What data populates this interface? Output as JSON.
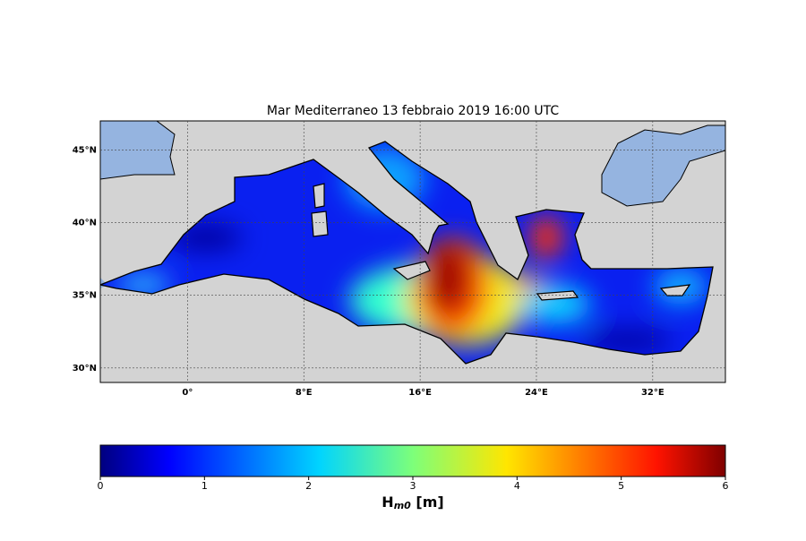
{
  "map": {
    "title": "Mar Mediterraneo 13 febbraio 2019  16:00 UTC",
    "xlim": [
      -6,
      37
    ],
    "ylim": [
      29,
      47
    ],
    "xticks": [
      {
        "value": 0,
        "label": "0°"
      },
      {
        "value": 8,
        "label": "8°E"
      },
      {
        "value": 16,
        "label": "16°E"
      },
      {
        "value": 24,
        "label": "24°E"
      },
      {
        "value": 32,
        "label": "32°E"
      }
    ],
    "yticks": [
      {
        "value": 30,
        "label": "30°N"
      },
      {
        "value": 35,
        "label": "35°N"
      },
      {
        "value": 40,
        "label": "40°N"
      },
      {
        "value": 45,
        "label": "45°N"
      }
    ],
    "grid": true
  },
  "colorbar": {
    "lim": [
      0,
      6
    ],
    "ticks": [
      0,
      1,
      2,
      3,
      4,
      5,
      6
    ],
    "label": {
      "main": "H",
      "sub": "m0",
      "unit": " [m]"
    }
  }
}
